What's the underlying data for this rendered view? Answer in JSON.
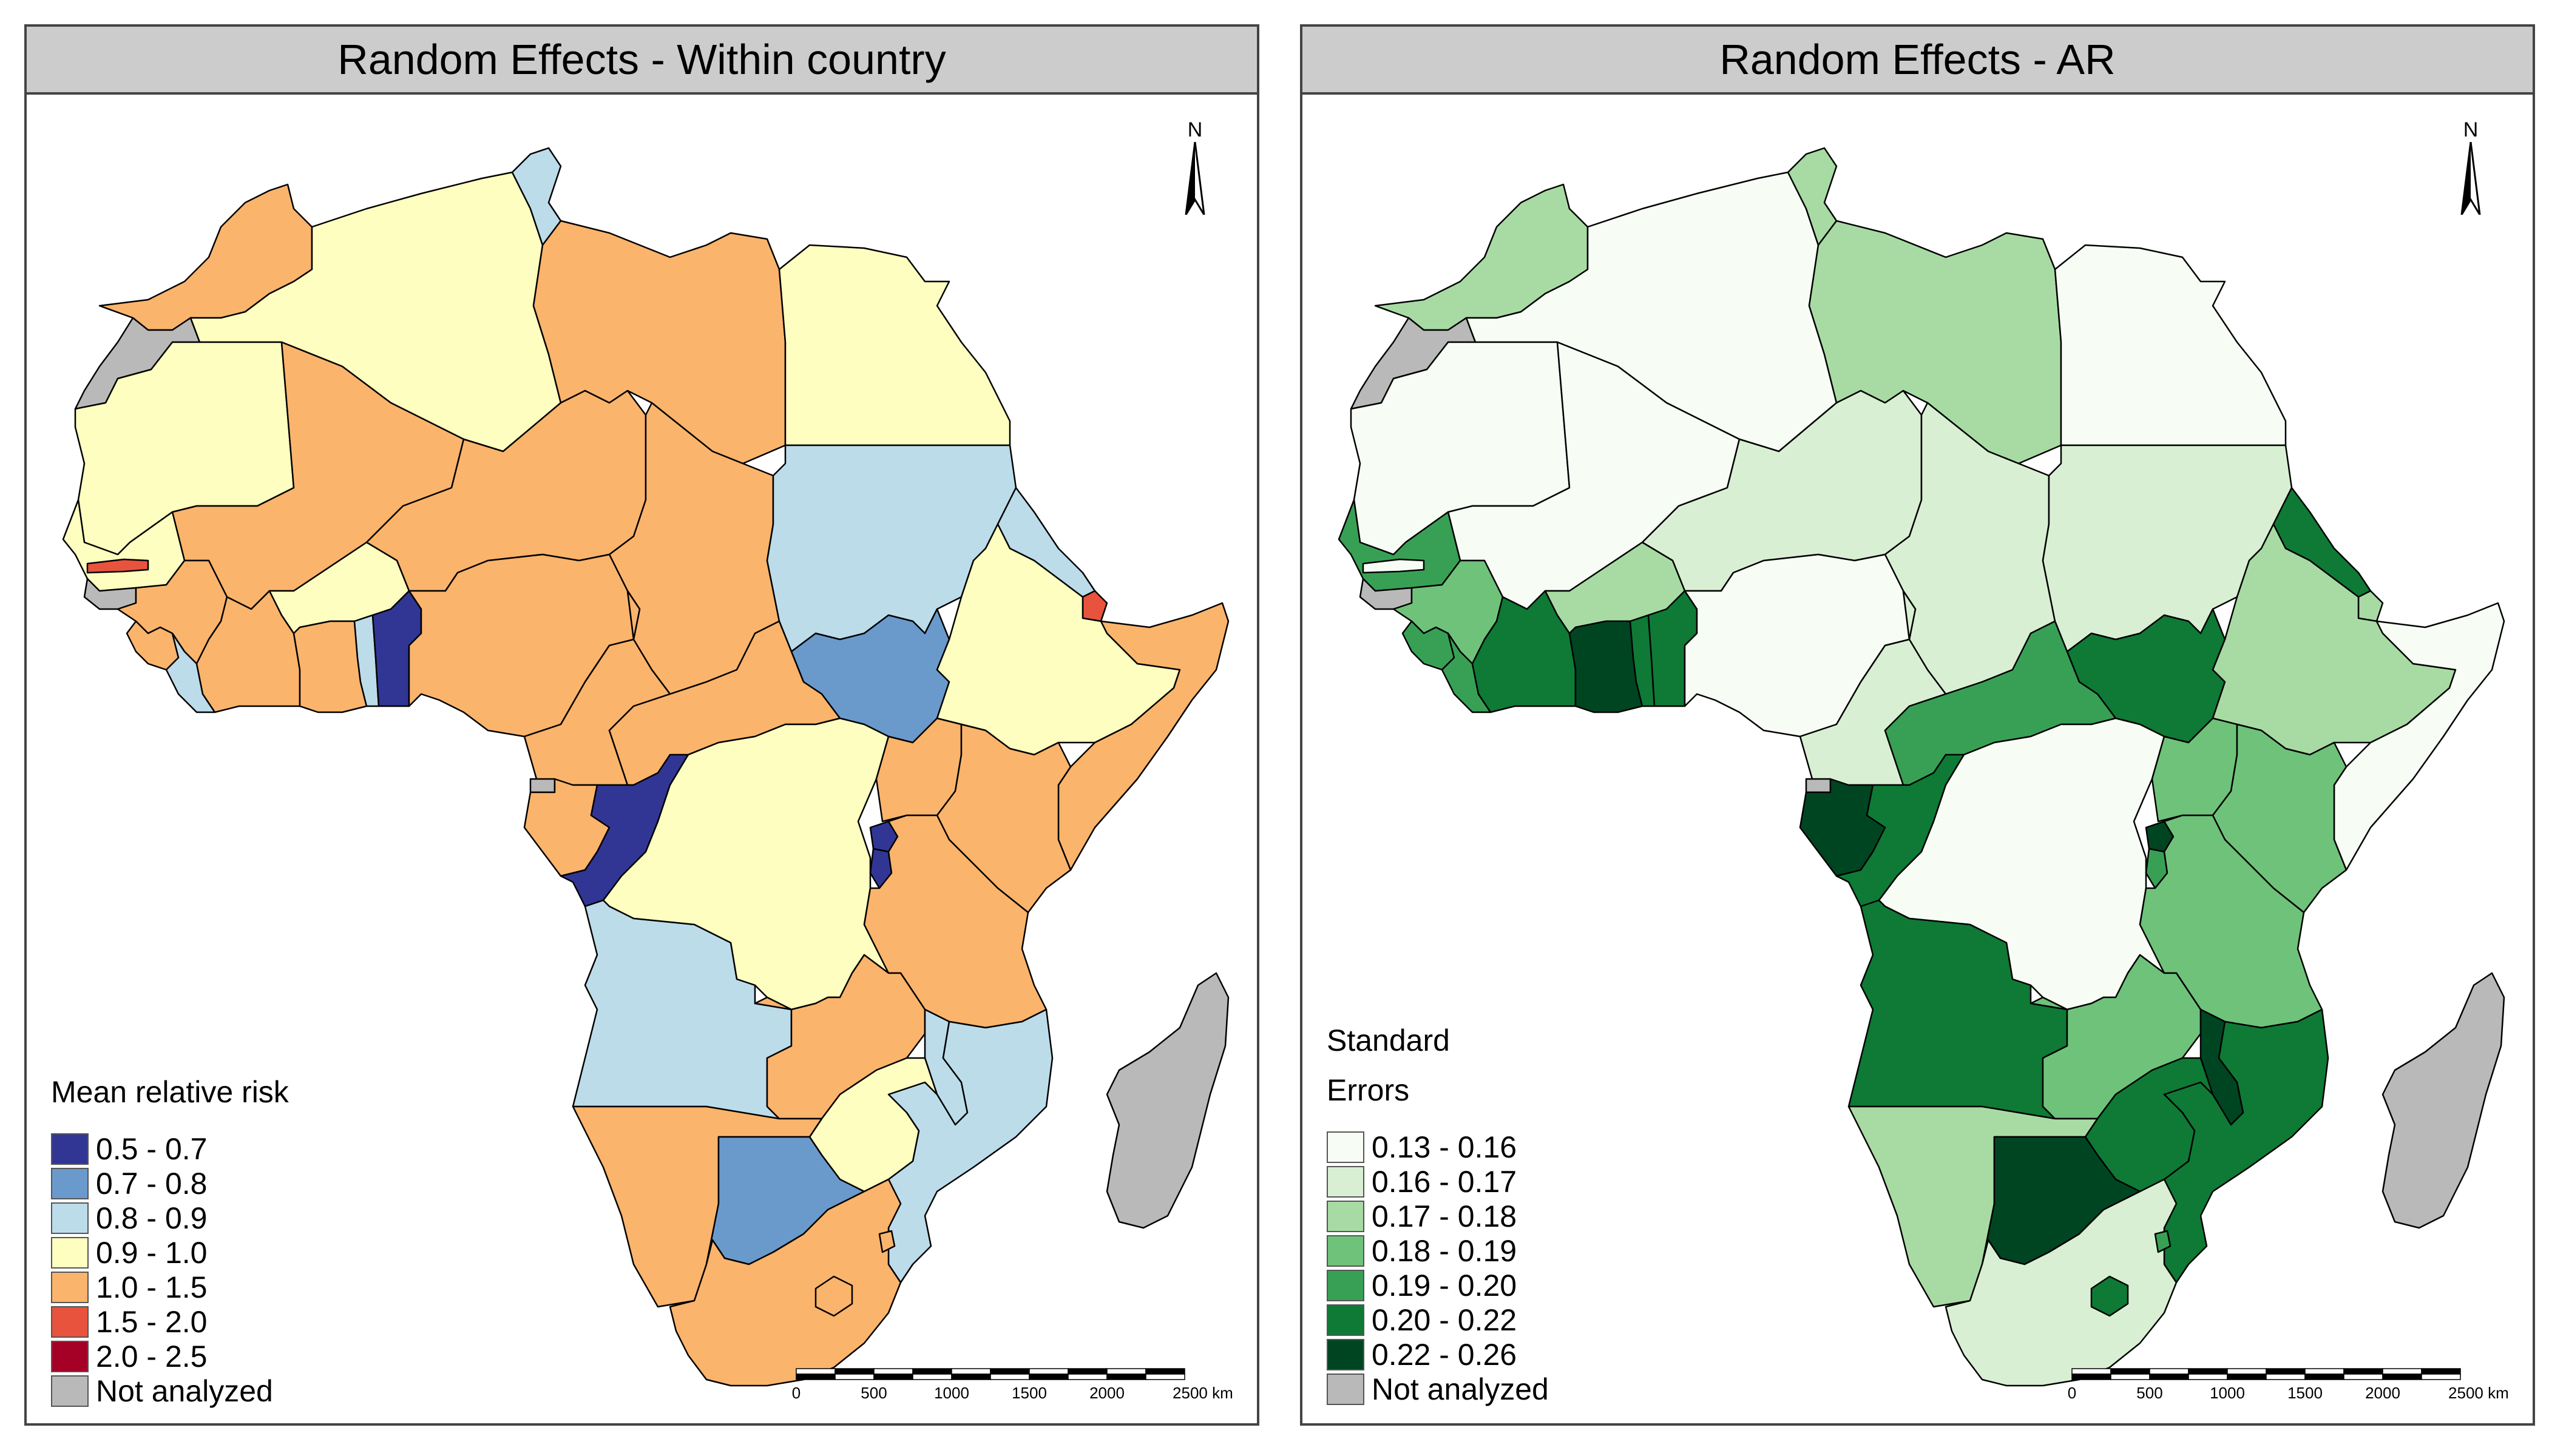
{
  "panels": [
    {
      "title": "Random Effects - Within country",
      "legend": {
        "title_lines": [
          "Mean relative risk"
        ],
        "items": [
          {
            "label": "0.5 - 0.7",
            "color": "#313695"
          },
          {
            "label": "0.7 - 0.8",
            "color": "#6a9acb"
          },
          {
            "label": "0.8 - 0.9",
            "color": "#bcdcea"
          },
          {
            "label": "0.9 - 1.0",
            "color": "#fefec0"
          },
          {
            "label": "1.0 - 1.5",
            "color": "#fbb46c"
          },
          {
            "label": "1.5 - 2.0",
            "color": "#e8533d"
          },
          {
            "label": "2.0 - 2.5",
            "color": "#a50026"
          },
          {
            "label": "Not analyzed",
            "color": "#b9b9b9"
          }
        ]
      },
      "regions": {
        "morocco": "#fbb46c",
        "western_sahara": "#b9b9b9",
        "algeria": "#fefec0",
        "tunisia": "#bcdcea",
        "libya": "#fbb46c",
        "egypt": "#fefec0",
        "mauritania": "#fefec0",
        "mali": "#fbb46c",
        "niger": "#fbb46c",
        "chad": "#fbb46c",
        "sudan": "#bcdcea",
        "south_sudan": "#6a9acb",
        "eritrea": "#bcdcea",
        "djibouti": "#e8533d",
        "ethiopia": "#fefec0",
        "somalia": "#fbb46c",
        "senegal": "#fefec0",
        "gambia": "#e8533d",
        "guinea_bissau": "#b9b9b9",
        "guinea": "#fbb46c",
        "sierra_leone": "#fbb46c",
        "liberia": "#bcdcea",
        "cote_divoire": "#fbb46c",
        "burkina_faso": "#fefec0",
        "ghana": "#fbb46c",
        "togo": "#bcdcea",
        "benin": "#313695",
        "nigeria": "#fbb46c",
        "cameroon": "#fbb46c",
        "car": "#fbb46c",
        "eq_guinea": "#b9b9b9",
        "gabon": "#fbb46c",
        "congo": "#313695",
        "drc": "#fefec0",
        "uganda": "#fbb46c",
        "kenya": "#fbb46c",
        "rwanda": "#313695",
        "burundi": "#313695",
        "tanzania": "#fbb46c",
        "angola": "#bcdcea",
        "zambia": "#fbb46c",
        "malawi": "#bcdcea",
        "mozambique": "#bcdcea",
        "zimbabwe": "#fefec0",
        "namibia": "#fbb46c",
        "botswana": "#6a9acb",
        "south_africa": "#fbb46c",
        "lesotho": "#fbb46c",
        "swaziland": "#fbb46c",
        "madagascar": "#b9b9b9"
      }
    },
    {
      "title": "Random Effects - AR",
      "legend": {
        "title_lines": [
          "Standard",
          "Errors"
        ],
        "items": [
          {
            "label": "0.13 - 0.16",
            "color": "#f7fcf5"
          },
          {
            "label": "0.16 - 0.17",
            "color": "#d9efd3"
          },
          {
            "label": "0.17 - 0.18",
            "color": "#a8dba3"
          },
          {
            "label": "0.18 - 0.19",
            "color": "#6fc27a"
          },
          {
            "label": "0.19 - 0.20",
            "color": "#38a055"
          },
          {
            "label": "0.20 - 0.22",
            "color": "#0e7a35"
          },
          {
            "label": "0.22 - 0.26",
            "color": "#004522"
          },
          {
            "label": "Not analyzed",
            "color": "#b9b9b9"
          }
        ]
      },
      "regions": {
        "morocco": "#a8dba3",
        "western_sahara": "#b9b9b9",
        "algeria": "#f7fcf5",
        "tunisia": "#a8dba3",
        "libya": "#a8dba3",
        "egypt": "#f7fcf5",
        "mauritania": "#f7fcf5",
        "mali": "#f7fcf5",
        "niger": "#d9efd3",
        "chad": "#d9efd3",
        "sudan": "#d9efd3",
        "south_sudan": "#0e7a35",
        "eritrea": "#0e7a35",
        "djibouti": "#a8dba3",
        "ethiopia": "#a8dba3",
        "somalia": "#f7fcf5",
        "senegal": "#38a055",
        "gambia": "#f7fcf5",
        "guinea_bissau": "#b9b9b9",
        "guinea": "#6fc27a",
        "sierra_leone": "#38a055",
        "liberia": "#38a055",
        "cote_divoire": "#0e7a35",
        "burkina_faso": "#a8dba3",
        "ghana": "#004522",
        "togo": "#0e7a35",
        "benin": "#0e7a35",
        "nigeria": "#f7fcf5",
        "cameroon": "#d9efd3",
        "car": "#38a055",
        "eq_guinea": "#b9b9b9",
        "gabon": "#004522",
        "congo": "#0e7a35",
        "drc": "#f7fcf5",
        "uganda": "#6fc27a",
        "kenya": "#6fc27a",
        "rwanda": "#004522",
        "burundi": "#38a055",
        "tanzania": "#6fc27a",
        "angola": "#0e7a35",
        "zambia": "#6fc27a",
        "malawi": "#004522",
        "mozambique": "#0e7a35",
        "zimbabwe": "#0e7a35",
        "namibia": "#a8dba3",
        "botswana": "#004522",
        "south_africa": "#d9efd3",
        "lesotho": "#0e7a35",
        "swaziland": "#38a055",
        "madagascar": "#b9b9b9"
      }
    }
  ],
  "north_label": "N",
  "scale_bar": {
    "ticks": [
      "0",
      "500",
      "1000",
      "1500",
      "2000",
      "2500 km"
    ]
  }
}
